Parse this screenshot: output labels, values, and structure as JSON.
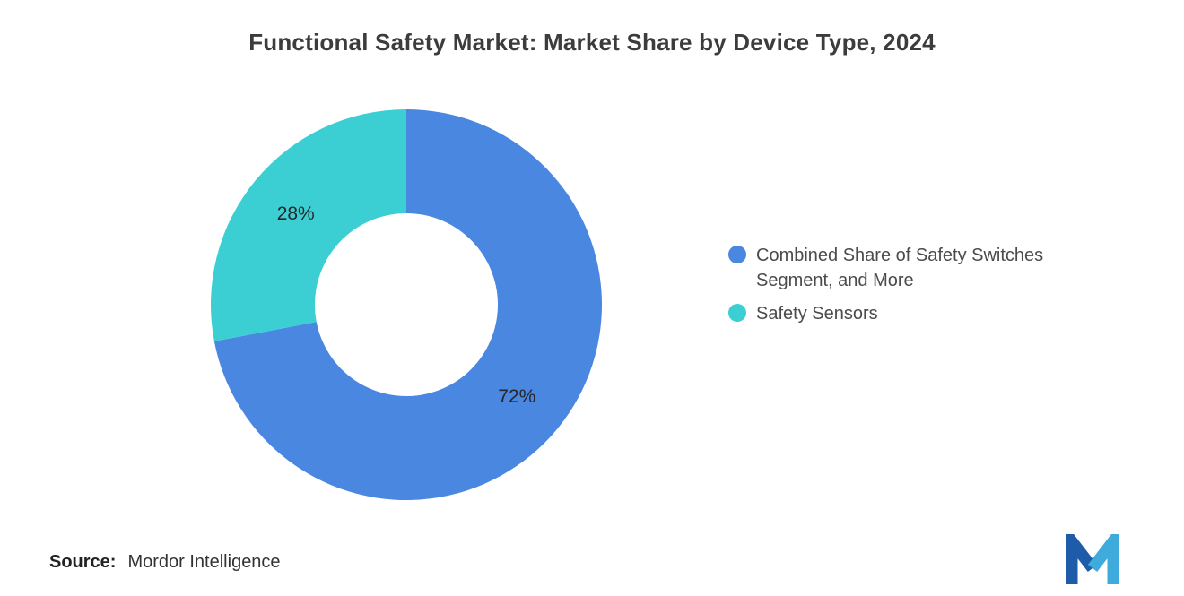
{
  "title": "Functional Safety Market: Market Share by Device Type, 2024",
  "source": {
    "label": "Source:",
    "value": "Mordor Intelligence"
  },
  "legend": [
    {
      "label": "Combined Share of Safety Switches Segment, and More",
      "color": "#4A87E0"
    },
    {
      "label": "Safety Sensors",
      "color": "#3BCFD4"
    }
  ],
  "logo": {
    "name": "mordor-intelligence-logo",
    "color_dark": "#1E5BA8",
    "color_light": "#3FAADC"
  },
  "chart_data": {
    "type": "pie",
    "title": "Functional Safety Market: Market Share by Device Type, 2024",
    "categories": [
      "Combined Share of Safety Switches Segment, and More",
      "Safety Sensors"
    ],
    "values": [
      72,
      28
    ],
    "labels": [
      "72%",
      "28%"
    ],
    "colors": [
      "#4A87E0",
      "#3BCFD4"
    ],
    "donut": true,
    "inner_radius_ratio": 0.47,
    "start_angle_deg": -90,
    "direction": "clockwise",
    "legend_position": "right",
    "label_color": "#262626"
  }
}
